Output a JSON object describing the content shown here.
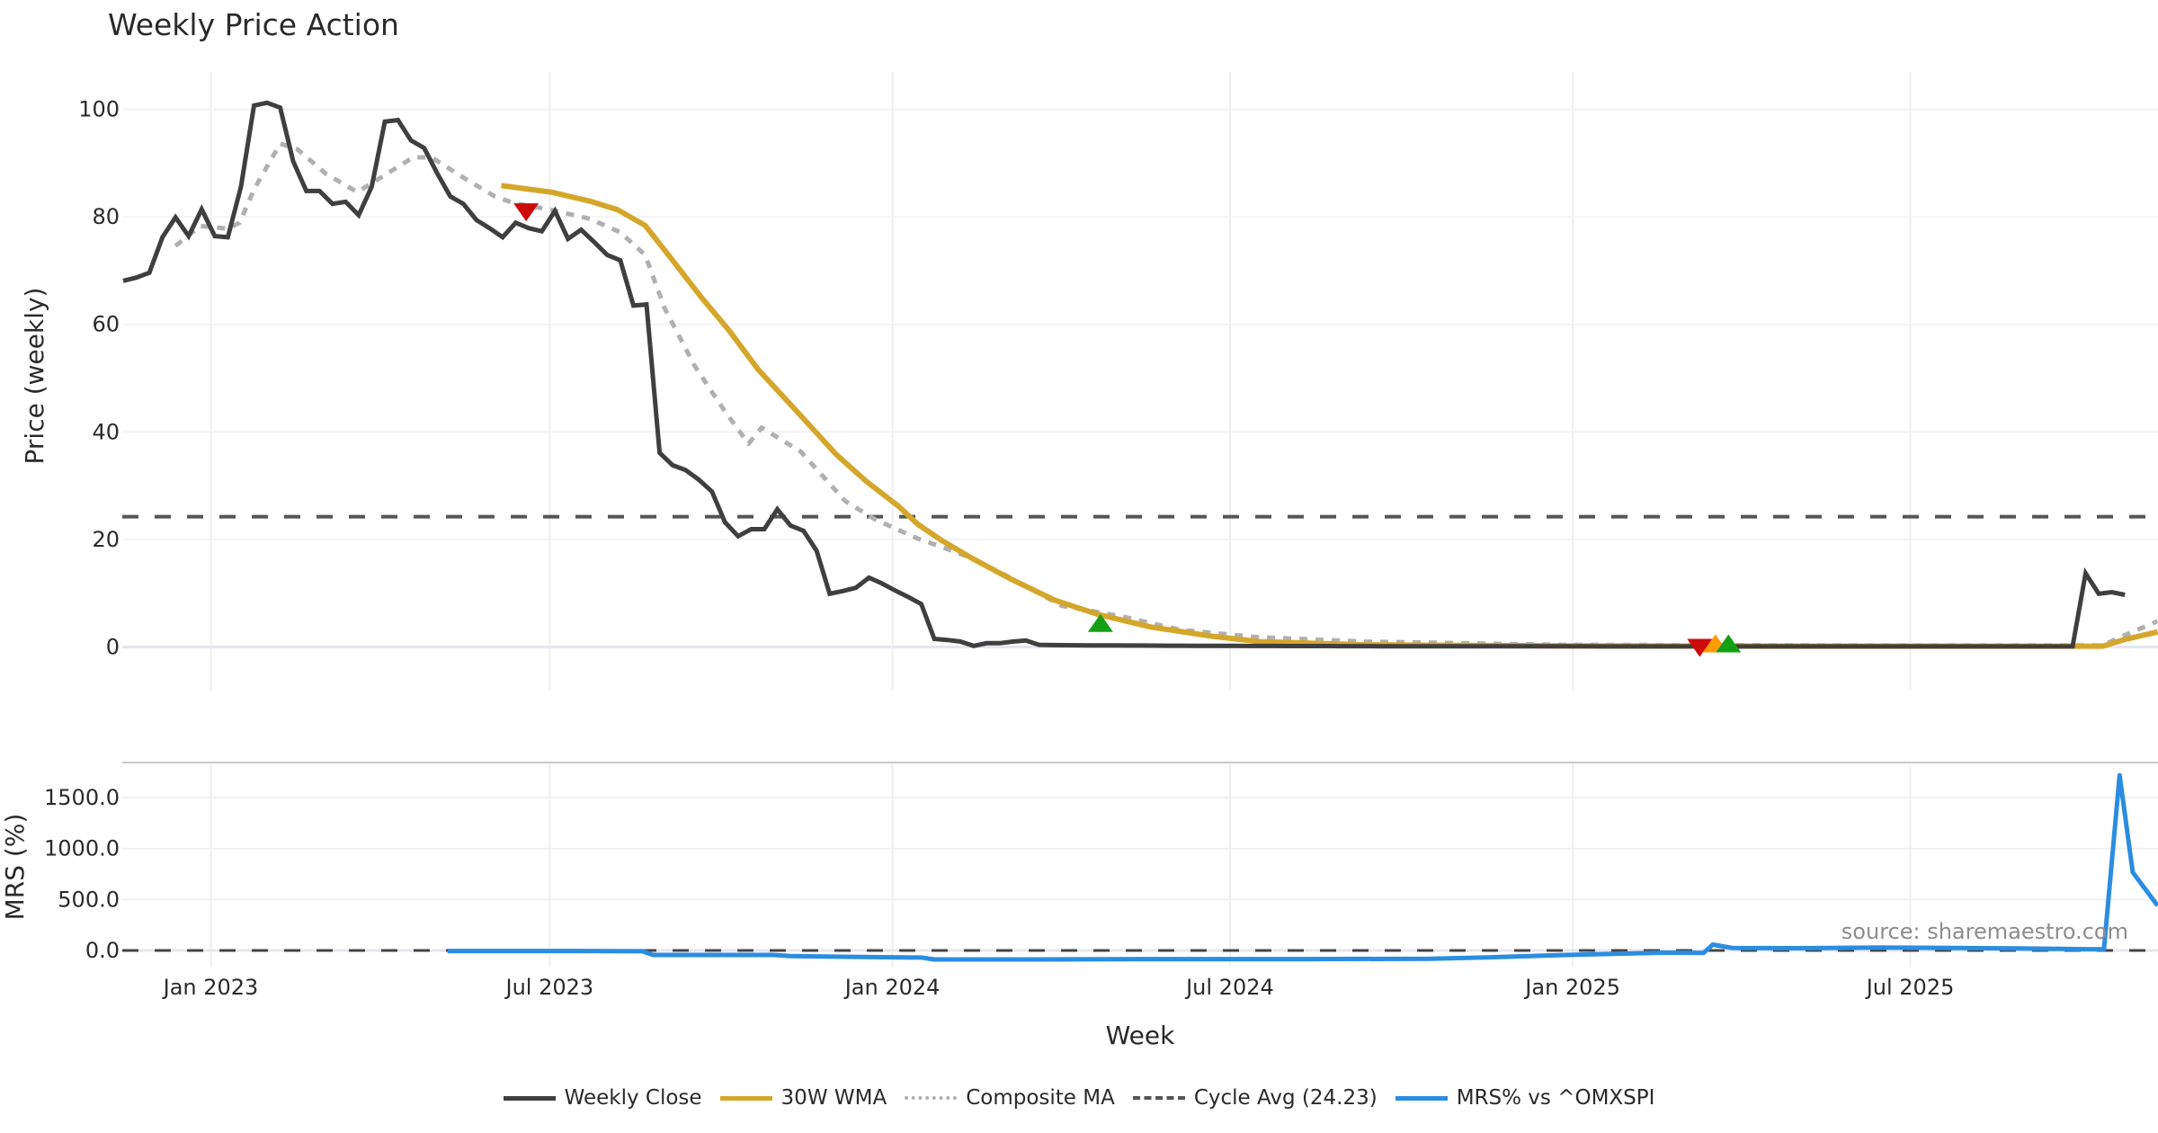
{
  "chart_data": {
    "type": "line",
    "title": "Weekly Price Action",
    "xlabel": "Week",
    "x_unit": "week index (0 = mid-Nov 2022)",
    "xlim": [
      -0.1,
      155.5
    ],
    "x_ticks": [
      {
        "label": "Jan 2023",
        "week": 6.7
      },
      {
        "label": "Jul 2023",
        "week": 32.6
      },
      {
        "label": "Jan 2024",
        "week": 58.8
      },
      {
        "label": "Jul 2024",
        "week": 84.6
      },
      {
        "label": "Jan 2025",
        "week": 110.8
      },
      {
        "label": "Jul 2025",
        "week": 136.6
      }
    ],
    "panels": {
      "price": {
        "ylabel": "Price (weekly)",
        "ylim": [
          -8,
          109
        ],
        "y_ticks": [
          "0",
          "20",
          "40",
          "60",
          "80",
          "100"
        ],
        "y_tick_values": [
          0,
          20,
          40,
          60,
          80,
          100
        ],
        "cycle_avg": 24.23,
        "weekly_close": [
          68.1,
          68.7,
          69.6,
          76.2,
          79.9,
          76.4,
          81.4,
          76.4,
          76.2,
          85.6,
          100.7,
          101.2,
          100.3,
          90.3,
          84.8,
          84.8,
          82.4,
          82.8,
          80.3,
          85.6,
          97.7,
          98.0,
          94.2,
          92.8,
          88.1,
          83.8,
          82.4,
          79.4,
          77.9,
          76.2,
          78.9,
          77.9,
          77.3,
          81.1,
          75.9,
          77.6,
          75.3,
          72.9,
          71.9,
          63.5,
          63.7,
          36.1,
          33.8,
          32.9,
          31.1,
          28.9,
          23.2,
          20.6,
          21.9,
          21.9,
          25.6,
          22.6,
          21.6,
          17.9,
          9.9,
          10.4,
          11.0,
          12.9,
          11.8,
          10.5,
          9.3,
          8.0,
          1.5,
          1.3,
          1.0,
          0.2,
          0.7,
          0.7,
          1.0,
          1.2,
          0.4,
          0.35,
          0.33,
          0.32,
          0.3,
          0.3,
          0.28,
          0.27,
          0.26,
          0.25,
          0.24,
          0.23,
          0.22,
          0.21,
          0.2,
          0.2,
          0.19,
          0.18,
          0.18,
          0.17,
          0.17,
          0.16,
          0.16,
          0.15,
          0.15,
          0.15,
          0.14,
          0.14,
          0.14,
          0.13,
          0.13,
          0.13,
          0.13,
          0.12,
          0.12,
          0.12,
          0.12,
          0.12,
          0.11,
          0.11,
          0.11,
          0.11,
          0.11,
          0.1,
          0.1,
          0.1,
          0.1,
          0.1,
          0.1,
          0.1,
          0.1,
          0.1,
          0.1,
          0.1,
          0.1,
          0.1,
          0.1,
          0.1,
          0.1,
          0.1,
          0.1,
          0.1,
          0.1,
          0.1,
          0.1,
          0.1,
          0.1,
          0.1,
          0.1,
          0.1,
          0.1,
          0.1,
          0.1,
          0.1,
          0.1,
          0.1,
          0.1,
          0.1,
          0.1,
          0.1,
          13.7,
          9.9,
          10.2,
          9.7
        ],
        "wma_30w": [
          [
            28.9,
            85.8
          ],
          [
            32.7,
            84.6
          ],
          [
            35.7,
            82.9
          ],
          [
            37.8,
            81.3
          ],
          [
            39.9,
            78.4
          ],
          [
            41.9,
            72.2
          ],
          [
            44.2,
            65.0
          ],
          [
            46.3,
            58.9
          ],
          [
            48.5,
            51.7
          ],
          [
            51.5,
            43.8
          ],
          [
            54.5,
            35.8
          ],
          [
            56.8,
            30.8
          ],
          [
            59.3,
            26.1
          ],
          [
            60.7,
            22.9
          ],
          [
            62.5,
            19.9
          ],
          [
            64.8,
            16.6
          ],
          [
            67.8,
            12.7
          ],
          [
            71.2,
            8.7
          ],
          [
            74.6,
            6.0
          ],
          [
            78.6,
            3.7
          ],
          [
            83.2,
            2.0
          ],
          [
            86.8,
            1.0
          ],
          [
            95,
            0.4
          ],
          [
            110,
            0.2
          ],
          [
            130,
            0.15
          ],
          [
            151.3,
            0.15
          ],
          [
            153,
            1.4
          ],
          [
            155.5,
            2.8
          ]
        ],
        "composite_ma": [
          [
            4.0,
            74.6
          ],
          [
            5.9,
            78.3
          ],
          [
            8.0,
            77.8
          ],
          [
            8.9,
            78.9
          ],
          [
            10.0,
            85.1
          ],
          [
            12.0,
            93.6
          ],
          [
            13.3,
            92.6
          ],
          [
            15.5,
            88.0
          ],
          [
            17.9,
            84.6
          ],
          [
            19.7,
            87.3
          ],
          [
            22.2,
            91.1
          ],
          [
            23.6,
            91.0
          ],
          [
            25.8,
            87.6
          ],
          [
            28.4,
            83.8
          ],
          [
            29.8,
            82.6
          ],
          [
            32.7,
            81.3
          ],
          [
            35.7,
            79.6
          ],
          [
            38.0,
            77.1
          ],
          [
            39.9,
            72.9
          ],
          [
            41.4,
            62.9
          ],
          [
            43.7,
            52.2
          ],
          [
            46.0,
            43.8
          ],
          [
            47.8,
            37.8
          ],
          [
            48.8,
            40.8
          ],
          [
            51.8,
            36.3
          ],
          [
            55.2,
            27.1
          ],
          [
            57.5,
            23.7
          ],
          [
            60.7,
            20.2
          ],
          [
            61.4,
            19.6
          ],
          [
            64.8,
            16.6
          ],
          [
            68.2,
            12.4
          ],
          [
            71.7,
            7.7
          ],
          [
            76.3,
            5.7
          ],
          [
            80.8,
            3.2
          ],
          [
            86.8,
            1.8
          ],
          [
            95,
            1.0
          ],
          [
            110,
            0.4
          ],
          [
            130,
            0.3
          ],
          [
            151.3,
            0.3
          ],
          [
            153,
            2.2
          ],
          [
            155.5,
            4.8
          ]
        ],
        "signals": [
          {
            "type": "sell",
            "week": 30.8,
            "value": 81.0,
            "color": "#cc0a0a"
          },
          {
            "type": "buy",
            "week": 74.7,
            "value": 4.3,
            "color": "#14a014"
          },
          {
            "type": "sell",
            "week": 120.5,
            "value": 0.0,
            "color": "#cc0a0a"
          },
          {
            "type": "watch",
            "week": 121.7,
            "value": 0.5,
            "color": "#ff9a00"
          },
          {
            "type": "buy",
            "week": 122.7,
            "value": 0.5,
            "color": "#14a014"
          }
        ]
      },
      "mrs": {
        "ylabel": "MRS (%)",
        "ylim": [
          -160,
          1850
        ],
        "y_ticks": [
          "0.0",
          "500.0",
          "1000.0",
          "1500.0"
        ],
        "y_tick_values": [
          0,
          500,
          1000,
          1500
        ],
        "series": [
          [
            24.8,
            -5
          ],
          [
            30,
            -5
          ],
          [
            35,
            -5
          ],
          [
            39.7,
            -8
          ],
          [
            40.5,
            -44
          ],
          [
            45,
            -44
          ],
          [
            49.7,
            -44
          ],
          [
            51,
            -55
          ],
          [
            55,
            -62
          ],
          [
            61,
            -70
          ],
          [
            62,
            -88
          ],
          [
            70,
            -88
          ],
          [
            80,
            -85
          ],
          [
            90,
            -85
          ],
          [
            99.9,
            -82
          ],
          [
            105,
            -65
          ],
          [
            110,
            -45
          ],
          [
            115,
            -30
          ],
          [
            117.7,
            -22
          ],
          [
            120.8,
            -25
          ],
          [
            121.5,
            57
          ],
          [
            123,
            25
          ],
          [
            128,
            22
          ],
          [
            134,
            28
          ],
          [
            140,
            25
          ],
          [
            145,
            20
          ],
          [
            150,
            12
          ],
          [
            151.4,
            12
          ],
          [
            152.6,
            1720
          ],
          [
            153.6,
            768
          ],
          [
            155.5,
            440
          ]
        ]
      }
    },
    "legend": [
      {
        "label": "Weekly Close",
        "color": "#3f3f3f",
        "style": "solid"
      },
      {
        "label": "30W WMA",
        "color": "#d4a62a",
        "style": "solid"
      },
      {
        "label": "Composite MA",
        "color": "#b0b0b0",
        "style": "dotted"
      },
      {
        "label": "Cycle Avg (24.23)",
        "color": "#555555",
        "style": "dashed"
      },
      {
        "label": "MRS% vs ^OMXSPI",
        "color": "#2b8de0",
        "style": "solid"
      }
    ],
    "legend_position": "bottom-center",
    "source": "source: sharemaestro.com",
    "grid": true
  }
}
